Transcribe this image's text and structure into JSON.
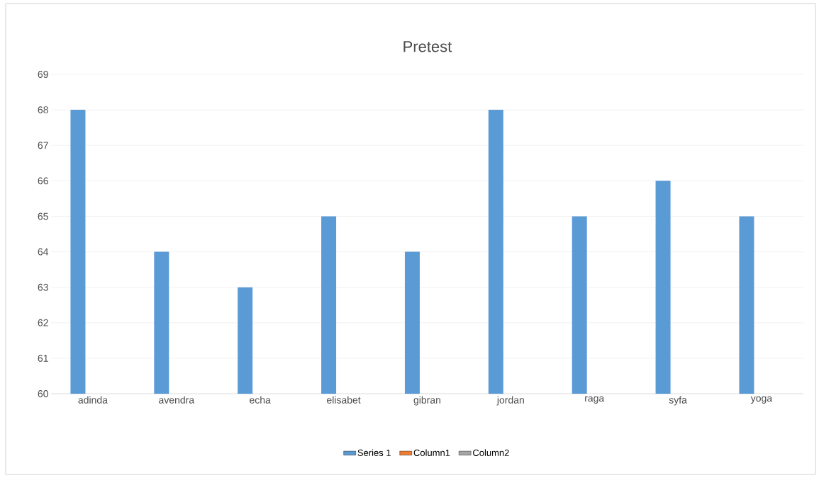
{
  "chart_data": {
    "type": "bar",
    "title": "Pretest",
    "categories": [
      "adinda",
      "avendra",
      "echa",
      "elisabet",
      "gibran",
      "jordan",
      "raga",
      "syfa",
      "yoga"
    ],
    "series": [
      {
        "name": "Series 1",
        "color": "#5b9bd5",
        "values": [
          68,
          64,
          63,
          65,
          64,
          68,
          65,
          66,
          65
        ]
      },
      {
        "name": "Column1",
        "color": "#ed7d31",
        "values": [
          null,
          null,
          null,
          null,
          null,
          null,
          null,
          null,
          null
        ]
      },
      {
        "name": "Column2",
        "color": "#a5a5a5",
        "values": [
          null,
          null,
          null,
          null,
          null,
          null,
          null,
          null,
          null
        ]
      }
    ],
    "ylim": [
      60,
      69
    ],
    "yticks": [
      60,
      61,
      62,
      63,
      64,
      65,
      66,
      67,
      68,
      69
    ],
    "grid": "y",
    "legend": "bottom"
  }
}
